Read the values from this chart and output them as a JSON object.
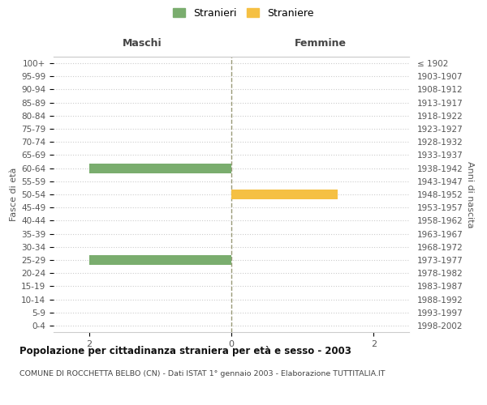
{
  "age_groups": [
    "100+",
    "95-99",
    "90-94",
    "85-89",
    "80-84",
    "75-79",
    "70-74",
    "65-69",
    "60-64",
    "55-59",
    "50-54",
    "45-49",
    "40-44",
    "35-39",
    "30-34",
    "25-29",
    "20-24",
    "15-19",
    "10-14",
    "5-9",
    "0-4"
  ],
  "birth_years": [
    "≤ 1902",
    "1903-1907",
    "1908-1912",
    "1913-1917",
    "1918-1922",
    "1923-1927",
    "1928-1932",
    "1933-1937",
    "1938-1942",
    "1943-1947",
    "1948-1952",
    "1953-1957",
    "1958-1962",
    "1963-1967",
    "1968-1972",
    "1973-1977",
    "1978-1982",
    "1983-1987",
    "1988-1992",
    "1993-1997",
    "1998-2002"
  ],
  "males": [
    0,
    0,
    0,
    0,
    0,
    0,
    0,
    0,
    -2,
    0,
    0,
    0,
    0,
    0,
    0,
    -2,
    0,
    0,
    0,
    0,
    0
  ],
  "females": [
    0,
    0,
    0,
    0,
    0,
    0,
    0,
    0,
    0,
    0,
    1.5,
    0,
    0,
    0,
    0,
    0,
    0,
    0,
    0,
    0,
    0
  ],
  "male_color": "#7aad6e",
  "female_color": "#f5c043",
  "xlim": [
    -2.5,
    2.5
  ],
  "xticks": [
    -2,
    0,
    2
  ],
  "center_line_color": "#999977",
  "grid_color": "#cccccc",
  "title": "Popolazione per cittadinanza straniera per età e sesso - 2003",
  "subtitle": "COMUNE DI ROCCHETTA BELBO (CN) - Dati ISTAT 1° gennaio 2003 - Elaborazione TUTTITALIA.IT",
  "maschi_label": "Maschi",
  "femmine_label": "Femmine",
  "fasce_label": "Fasce di età",
  "anni_label": "Anni di nascita",
  "legend_male": "Stranieri",
  "legend_female": "Straniere",
  "bar_height": 0.75,
  "background_color": "#ffffff",
  "plot_bg_color": "#ffffff"
}
